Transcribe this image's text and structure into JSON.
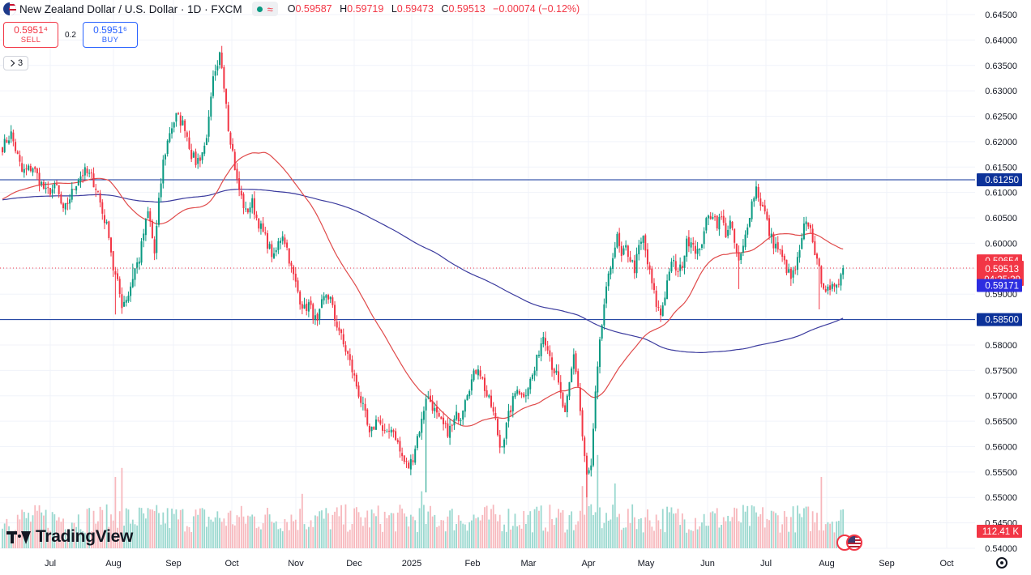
{
  "header": {
    "title": "New Zealand Dollar / U.S. Dollar · 1D · FXCM",
    "market_status_color": "#089981",
    "ohlc": {
      "open_label": "O",
      "open": "0.59587",
      "high_label": "H",
      "high": "0.59719",
      "low_label": "L",
      "low": "0.59473",
      "close_label": "C",
      "close": "0.59513",
      "change": "−0.00074 (−0.12%)"
    }
  },
  "trade": {
    "sell_price": "0.5951⁴",
    "sell_label": "SELL",
    "spread": "0.2",
    "buy_price": "0.5951⁶",
    "buy_label": "BUY"
  },
  "indicators": {
    "count": "3"
  },
  "branding": {
    "logo_text": "TradingView"
  },
  "chart_data": {
    "type": "candlestick",
    "symbol": "NZDUSD",
    "interval": "1D",
    "price_axis": {
      "min": 0.54,
      "max": 0.645,
      "step": 0.005,
      "ticks": [
        "0.64500",
        "0.64000",
        "0.63500",
        "0.63000",
        "0.62500",
        "0.62000",
        "0.61500",
        "0.61000",
        "0.60500",
        "0.60000",
        "0.59500",
        "0.59000",
        "0.58500",
        "0.58000",
        "0.57500",
        "0.57000",
        "0.56500",
        "0.56000",
        "0.55500",
        "0.55000",
        "0.54500",
        "0.54000"
      ]
    },
    "time_axis": {
      "labels": [
        "Jul",
        "Aug",
        "Sep",
        "Oct",
        "Nov",
        "Dec",
        "2025",
        "Feb",
        "Mar",
        "Apr",
        "May",
        "Jun",
        "Jul",
        "Aug",
        "Sep",
        "Oct"
      ]
    },
    "horizontal_lines": [
      {
        "value": 0.6125,
        "label": "0.61250",
        "color": "#0c3299"
      },
      {
        "value": 0.585,
        "label": "0.58500",
        "color": "#0c3299"
      }
    ],
    "current_price_line": {
      "value": 0.59513,
      "style": "dotted"
    },
    "price_labels": [
      {
        "value": 0.59654,
        "label": "0.59654",
        "color": "#f23645"
      },
      {
        "value": 0.59513,
        "label": "0.59513",
        "color": "#f23645"
      },
      {
        "value": 0.59171,
        "label": "0.59171",
        "color": "#2d2de0"
      }
    ],
    "countdown": "04:25:29",
    "volume_label": "112.41 K",
    "colors": {
      "up": "#089981",
      "down": "#f23645",
      "ma_fast": "#e04b4b",
      "ma_slow": "#3b3b9e",
      "vol_up": "#9ad8cf",
      "vol_down": "#f7b8bd"
    },
    "waypoints": [
      [
        0,
        0.619
      ],
      [
        4,
        0.6215
      ],
      [
        9,
        0.614
      ],
      [
        14,
        0.615
      ],
      [
        20,
        0.61
      ],
      [
        25,
        0.611
      ],
      [
        28,
        0.606
      ],
      [
        30,
        0.608
      ],
      [
        35,
        0.613
      ],
      [
        38,
        0.614
      ],
      [
        41,
        0.613
      ],
      [
        44,
        0.61
      ],
      [
        46,
        0.606
      ],
      [
        49,
        0.602
      ],
      [
        51,
        0.595
      ],
      [
        53,
        0.592
      ],
      [
        55,
        0.588
      ],
      [
        58,
        0.59
      ],
      [
        61,
        0.595
      ],
      [
        63,
        0.597
      ],
      [
        65,
        0.602
      ],
      [
        67,
        0.606
      ],
      [
        68,
        0.604
      ],
      [
        70,
        0.598
      ],
      [
        72,
        0.608
      ],
      [
        74,
        0.616
      ],
      [
        77,
        0.622
      ],
      [
        80,
        0.625
      ],
      [
        82,
        0.624
      ],
      [
        84,
        0.623
      ],
      [
        87,
        0.6175
      ],
      [
        89,
        0.616
      ],
      [
        91,
        0.617
      ],
      [
        93,
        0.619
      ],
      [
        95,
        0.624
      ],
      [
        97,
        0.632
      ],
      [
        99,
        0.634
      ],
      [
        100,
        0.637
      ],
      [
        101,
        0.635
      ],
      [
        103,
        0.628
      ],
      [
        104,
        0.623
      ],
      [
        106,
        0.618
      ],
      [
        108,
        0.612
      ],
      [
        110,
        0.609
      ],
      [
        112,
        0.606
      ],
      [
        115,
        0.608
      ],
      [
        117,
        0.605
      ],
      [
        120,
        0.602
      ],
      [
        123,
        0.599
      ],
      [
        125,
        0.597
      ],
      [
        127,
        0.6
      ],
      [
        129,
        0.602
      ],
      [
        131,
        0.599
      ],
      [
        133,
        0.595
      ],
      [
        135,
        0.592
      ],
      [
        137,
        0.589
      ],
      [
        139,
        0.587
      ],
      [
        141,
        0.588
      ],
      [
        143,
        0.586
      ],
      [
        145,
        0.584
      ],
      [
        147,
        0.588
      ],
      [
        149,
        0.59
      ],
      [
        151,
        0.589
      ],
      [
        153,
        0.585
      ],
      [
        155,
        0.583
      ],
      [
        157,
        0.58
      ],
      [
        159,
        0.578
      ],
      [
        161,
        0.575
      ],
      [
        163,
        0.572
      ],
      [
        165,
        0.569
      ],
      [
        167,
        0.566
      ],
      [
        169,
        0.562
      ],
      [
        171,
        0.564
      ],
      [
        173,
        0.566
      ],
      [
        175,
        0.563
      ],
      [
        177,
        0.562
      ],
      [
        179,
        0.564
      ],
      [
        181,
        0.562
      ],
      [
        183,
        0.559
      ],
      [
        185,
        0.557
      ],
      [
        187,
        0.556
      ],
      [
        189,
        0.558
      ],
      [
        191,
        0.562
      ],
      [
        193,
        0.565
      ],
      [
        195,
        0.57
      ],
      [
        197,
        0.569
      ],
      [
        199,
        0.567
      ],
      [
        201,
        0.565
      ],
      [
        203,
        0.564
      ],
      [
        205,
        0.563
      ],
      [
        207,
        0.564
      ],
      [
        209,
        0.566
      ],
      [
        211,
        0.566
      ],
      [
        213,
        0.57
      ],
      [
        215,
        0.572
      ],
      [
        217,
        0.574
      ],
      [
        219,
        0.576
      ],
      [
        221,
        0.573
      ],
      [
        223,
        0.57
      ],
      [
        225,
        0.568
      ],
      [
        227,
        0.565
      ],
      [
        229,
        0.56
      ],
      [
        231,
        0.562
      ],
      [
        233,
        0.566
      ],
      [
        235,
        0.569
      ],
      [
        237,
        0.572
      ],
      [
        239,
        0.57
      ],
      [
        241,
        0.571
      ],
      [
        243,
        0.573
      ],
      [
        245,
        0.575
      ],
      [
        247,
        0.579
      ],
      [
        249,
        0.582
      ],
      [
        251,
        0.58
      ],
      [
        253,
        0.576
      ],
      [
        255,
        0.574
      ],
      [
        257,
        0.57
      ],
      [
        259,
        0.566
      ],
      [
        261,
        0.572
      ],
      [
        263,
        0.578
      ],
      [
        265,
        0.572
      ],
      [
        267,
        0.562
      ],
      [
        269,
        0.554
      ],
      [
        271,
        0.556
      ],
      [
        273,
        0.57
      ],
      [
        275,
        0.58
      ],
      [
        277,
        0.588
      ],
      [
        279,
        0.593
      ],
      [
        281,
        0.598
      ],
      [
        283,
        0.601
      ],
      [
        285,
        0.597
      ],
      [
        287,
        0.599
      ],
      [
        289,
        0.597
      ],
      [
        291,
        0.595
      ],
      [
        293,
        0.599
      ],
      [
        295,
        0.601
      ],
      [
        297,
        0.596
      ],
      [
        299,
        0.592
      ],
      [
        301,
        0.588
      ],
      [
        303,
        0.586
      ],
      [
        305,
        0.59
      ],
      [
        307,
        0.595
      ],
      [
        309,
        0.596
      ],
      [
        311,
        0.594
      ],
      [
        313,
        0.596
      ],
      [
        315,
        0.6
      ],
      [
        317,
        0.601
      ],
      [
        319,
        0.599
      ],
      [
        321,
        0.598
      ],
      [
        323,
        0.603
      ],
      [
        325,
        0.605
      ],
      [
        327,
        0.606
      ],
      [
        329,
        0.604
      ],
      [
        331,
        0.605
      ],
      [
        333,
        0.602
      ],
      [
        335,
        0.604
      ],
      [
        337,
        0.6
      ],
      [
        339,
        0.596
      ],
      [
        341,
        0.599
      ],
      [
        343,
        0.604
      ],
      [
        345,
        0.608
      ],
      [
        347,
        0.611
      ],
      [
        349,
        0.608
      ],
      [
        351,
        0.606
      ],
      [
        353,
        0.602
      ],
      [
        355,
        0.6
      ],
      [
        357,
        0.599
      ],
      [
        359,
        0.597
      ],
      [
        361,
        0.595
      ],
      [
        363,
        0.593
      ],
      [
        365,
        0.595
      ],
      [
        367,
        0.598
      ],
      [
        369,
        0.603
      ],
      [
        371,
        0.604
      ],
      [
        373,
        0.601
      ],
      [
        375,
        0.596
      ],
      [
        377,
        0.593
      ],
      [
        379,
        0.591
      ],
      [
        381,
        0.59
      ],
      [
        383,
        0.592
      ],
      [
        385,
        0.593
      ],
      [
        387,
        0.595
      ]
    ],
    "events": [
      [
        52,
        0.586
      ],
      [
        60,
        0.596
      ],
      [
        118,
        0.605
      ],
      [
        195,
        0.551
      ],
      [
        268,
        0.557
      ],
      [
        269,
        0.55
      ],
      [
        339,
        0.591
      ],
      [
        376,
        0.587
      ]
    ],
    "volume_spikes": [
      [
        52,
        0.55
      ],
      [
        55,
        0.62
      ],
      [
        138,
        0.42
      ],
      [
        193,
        0.44
      ],
      [
        267,
        0.48
      ],
      [
        269,
        0.62
      ],
      [
        274,
        0.72
      ],
      [
        282,
        0.5
      ],
      [
        377,
        0.55
      ]
    ]
  }
}
